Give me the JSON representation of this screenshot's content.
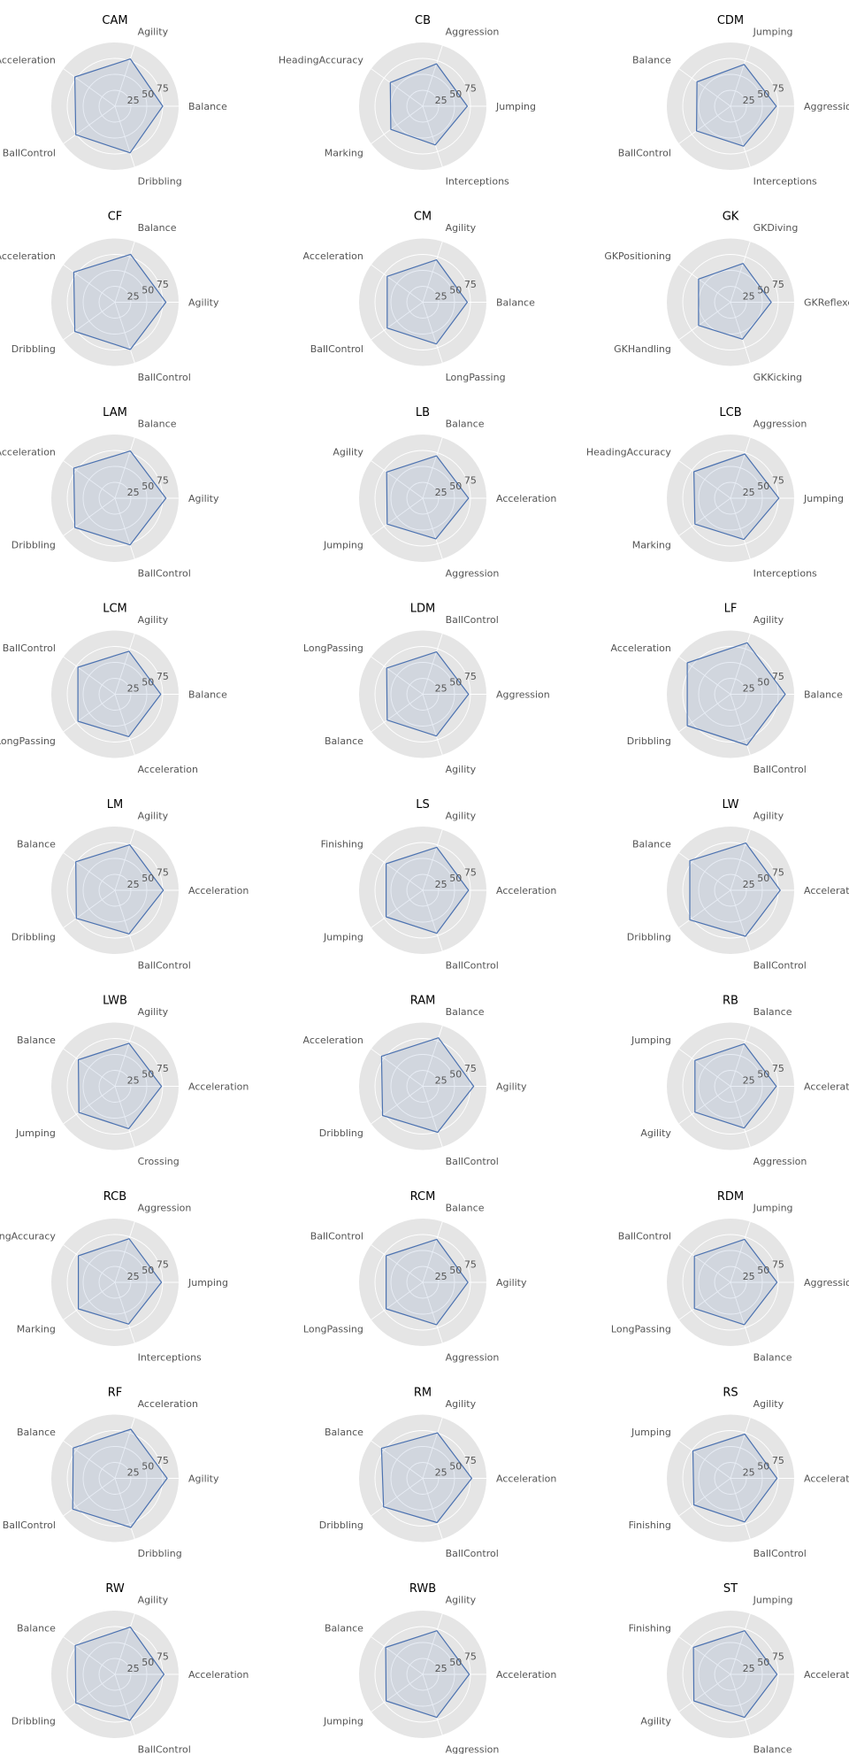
{
  "colors": {
    "background": "#E5E5E5",
    "grid": "#FFFFFF",
    "line": "#4C72B0",
    "fill": "#4C72B0"
  },
  "chart_data": [
    {
      "type": "radar",
      "title": "CAM",
      "axes": [
        "Balance",
        "Agility",
        "Acceleration",
        "BallControl",
        "Dribbling"
      ],
      "values": [
        75,
        78,
        78,
        76,
        77
      ],
      "rlim": [
        0,
        100
      ],
      "rticks": [
        "25",
        "50",
        "75"
      ]
    },
    {
      "type": "radar",
      "title": "CB",
      "axes": [
        "Jumping",
        "Aggression",
        "HeadingAccuracy",
        "Marking",
        "Interceptions"
      ],
      "values": [
        70,
        70,
        63,
        62,
        64
      ],
      "rlim": [
        0,
        100
      ],
      "rticks": [
        "25",
        "50",
        "75"
      ]
    },
    {
      "type": "radar",
      "title": "CDM",
      "axes": [
        "Aggression",
        "Jumping",
        "Balance",
        "BallControl",
        "Interceptions"
      ],
      "values": [
        72,
        69,
        65,
        66,
        66
      ],
      "rlim": [
        0,
        100
      ],
      "rticks": [
        "25",
        "50",
        "75"
      ]
    },
    {
      "type": "radar",
      "title": "CF",
      "axes": [
        "Agility",
        "Balance",
        "Acceleration",
        "Dribbling",
        "BallControl"
      ],
      "values": [
        80,
        79,
        80,
        78,
        78
      ],
      "rlim": [
        0,
        100
      ],
      "rticks": [
        "25",
        "50",
        "75"
      ]
    },
    {
      "type": "radar",
      "title": "CM",
      "axes": [
        "Balance",
        "Agility",
        "Acceleration",
        "BallControl",
        "LongPassing"
      ],
      "values": [
        70,
        70,
        69,
        69,
        69
      ],
      "rlim": [
        0,
        100
      ],
      "rticks": [
        "25",
        "50",
        "75"
      ]
    },
    {
      "type": "radar",
      "title": "GK",
      "axes": [
        "GKReflexes",
        "GKDiving",
        "GKPositioning",
        "GKHandling",
        "GKKicking"
      ],
      "values": [
        64,
        64,
        62,
        62,
        61
      ],
      "rlim": [
        0,
        100
      ],
      "rticks": [
        "25",
        "50",
        "75"
      ]
    },
    {
      "type": "radar",
      "title": "LAM",
      "axes": [
        "Agility",
        "Balance",
        "Acceleration",
        "Dribbling",
        "BallControl"
      ],
      "values": [
        80,
        78,
        80,
        78,
        77
      ],
      "rlim": [
        0,
        100
      ],
      "rticks": [
        "25",
        "50",
        "75"
      ]
    },
    {
      "type": "radar",
      "title": "LB",
      "axes": [
        "Acceleration",
        "Balance",
        "Agility",
        "Jumping",
        "Aggression"
      ],
      "values": [
        72,
        70,
        70,
        69,
        67
      ],
      "rlim": [
        0,
        100
      ],
      "rticks": [
        "25",
        "50",
        "75"
      ]
    },
    {
      "type": "radar",
      "title": "LCB",
      "axes": [
        "Jumping",
        "Aggression",
        "HeadingAccuracy",
        "Marking",
        "Interceptions"
      ],
      "values": [
        76,
        73,
        71,
        69,
        68
      ],
      "rlim": [
        0,
        100
      ],
      "rticks": [
        "25",
        "50",
        "75"
      ]
    },
    {
      "type": "radar",
      "title": "LCM",
      "axes": [
        "Balance",
        "Agility",
        "BallControl",
        "LongPassing",
        "Acceleration"
      ],
      "values": [
        72,
        71,
        72,
        72,
        70
      ],
      "rlim": [
        0,
        100
      ],
      "rticks": [
        "25",
        "50",
        "75"
      ]
    },
    {
      "type": "radar",
      "title": "LDM",
      "axes": [
        "Aggression",
        "BallControl",
        "LongPassing",
        "Balance",
        "Agility"
      ],
      "values": [
        72,
        70,
        70,
        69,
        69
      ],
      "rlim": [
        0,
        100
      ],
      "rticks": [
        "25",
        "50",
        "75"
      ]
    },
    {
      "type": "radar",
      "title": "LF",
      "axes": [
        "Balance",
        "Agility",
        "Acceleration",
        "Dribbling",
        "BallControl"
      ],
      "values": [
        86,
        85,
        84,
        84,
        84
      ],
      "rlim": [
        0,
        100
      ],
      "rticks": [
        "25",
        "50",
        "75"
      ]
    },
    {
      "type": "radar",
      "title": "LM",
      "axes": [
        "Acceleration",
        "Agility",
        "Balance",
        "Dribbling",
        "BallControl"
      ],
      "values": [
        76,
        75,
        76,
        75,
        72
      ],
      "rlim": [
        0,
        100
      ],
      "rticks": [
        "25",
        "50",
        "75"
      ]
    },
    {
      "type": "radar",
      "title": "LS",
      "axes": [
        "Acceleration",
        "Agility",
        "Finishing",
        "Jumping",
        "BallControl"
      ],
      "values": [
        72,
        71,
        71,
        71,
        71
      ],
      "rlim": [
        0,
        100
      ],
      "rticks": [
        "25",
        "50",
        "75"
      ]
    },
    {
      "type": "radar",
      "title": "LW",
      "axes": [
        "Acceleration",
        "Agility",
        "Balance",
        "Dribbling",
        "BallControl"
      ],
      "values": [
        78,
        78,
        79,
        79,
        76
      ],
      "rlim": [
        0,
        100
      ],
      "rticks": [
        "25",
        "50",
        "75"
      ]
    },
    {
      "type": "radar",
      "title": "LWB",
      "axes": [
        "Acceleration",
        "Agility",
        "Balance",
        "Jumping",
        "Crossing"
      ],
      "values": [
        73,
        71,
        71,
        70,
        70
      ],
      "rlim": [
        0,
        100
      ],
      "rticks": [
        "25",
        "50",
        "75"
      ]
    },
    {
      "type": "radar",
      "title": "RAM",
      "axes": [
        "Agility",
        "Balance",
        "Acceleration",
        "Dribbling",
        "BallControl"
      ],
      "values": [
        80,
        80,
        80,
        78,
        76
      ],
      "rlim": [
        0,
        100
      ],
      "rticks": [
        "25",
        "50",
        "75"
      ]
    },
    {
      "type": "radar",
      "title": "RB",
      "axes": [
        "Acceleration",
        "Balance",
        "Jumping",
        "Agility",
        "Aggression"
      ],
      "values": [
        72,
        70,
        69,
        69,
        69
      ],
      "rlim": [
        0,
        100
      ],
      "rticks": [
        "25",
        "50",
        "75"
      ]
    },
    {
      "type": "radar",
      "title": "RCB",
      "axes": [
        "Jumping",
        "Aggression",
        "HeadingAccuracy",
        "Marking",
        "Interceptions"
      ],
      "values": [
        73,
        72,
        71,
        71,
        69
      ],
      "rlim": [
        0,
        100
      ],
      "rticks": [
        "25",
        "50",
        "75"
      ]
    },
    {
      "type": "radar",
      "title": "RCM",
      "axes": [
        "Agility",
        "Balance",
        "BallControl",
        "LongPassing",
        "Aggression"
      ],
      "values": [
        71,
        71,
        71,
        71,
        70
      ],
      "rlim": [
        0,
        100
      ],
      "rticks": [
        "25",
        "50",
        "75"
      ]
    },
    {
      "type": "radar",
      "title": "RDM",
      "axes": [
        "Aggression",
        "Jumping",
        "BallControl",
        "LongPassing",
        "Balance"
      ],
      "values": [
        73,
        71,
        70,
        70,
        70
      ],
      "rlim": [
        0,
        100
      ],
      "rticks": [
        "25",
        "50",
        "75"
      ]
    },
    {
      "type": "radar",
      "title": "RF",
      "axes": [
        "Agility",
        "Acceleration",
        "Balance",
        "BallControl",
        "Dribbling"
      ],
      "values": [
        82,
        81,
        81,
        82,
        81
      ],
      "rlim": [
        0,
        100
      ],
      "rticks": [
        "25",
        "50",
        "75"
      ]
    },
    {
      "type": "radar",
      "title": "RM",
      "axes": [
        "Acceleration",
        "Agility",
        "Balance",
        "Dribbling",
        "BallControl"
      ],
      "values": [
        77,
        75,
        80,
        76,
        73
      ],
      "rlim": [
        0,
        100
      ],
      "rticks": [
        "25",
        "50",
        "75"
      ]
    },
    {
      "type": "radar",
      "title": "RS",
      "axes": [
        "Acceleration",
        "Agility",
        "Jumping",
        "Finishing",
        "BallControl"
      ],
      "values": [
        73,
        73,
        73,
        71,
        72
      ],
      "rlim": [
        0,
        100
      ],
      "rticks": [
        "25",
        "50",
        "75"
      ]
    },
    {
      "type": "radar",
      "title": "RW",
      "axes": [
        "Acceleration",
        "Agility",
        "Balance",
        "Dribbling",
        "BallControl"
      ],
      "values": [
        77,
        78,
        77,
        76,
        76
      ],
      "rlim": [
        0,
        100
      ],
      "rticks": [
        "25",
        "50",
        "75"
      ]
    },
    {
      "type": "radar",
      "title": "RWB",
      "axes": [
        "Acceleration",
        "Agility",
        "Balance",
        "Jumping",
        "Aggression"
      ],
      "values": [
        73,
        72,
        72,
        71,
        71
      ],
      "rlim": [
        0,
        100
      ],
      "rticks": [
        "25",
        "50",
        "75"
      ]
    },
    {
      "type": "radar",
      "title": "ST",
      "axes": [
        "Acceleration",
        "Jumping",
        "Finishing",
        "Agility",
        "Balance"
      ],
      "values": [
        73,
        72,
        72,
        71,
        71
      ],
      "rlim": [
        0,
        100
      ],
      "rticks": [
        "25",
        "50",
        "75"
      ]
    }
  ]
}
